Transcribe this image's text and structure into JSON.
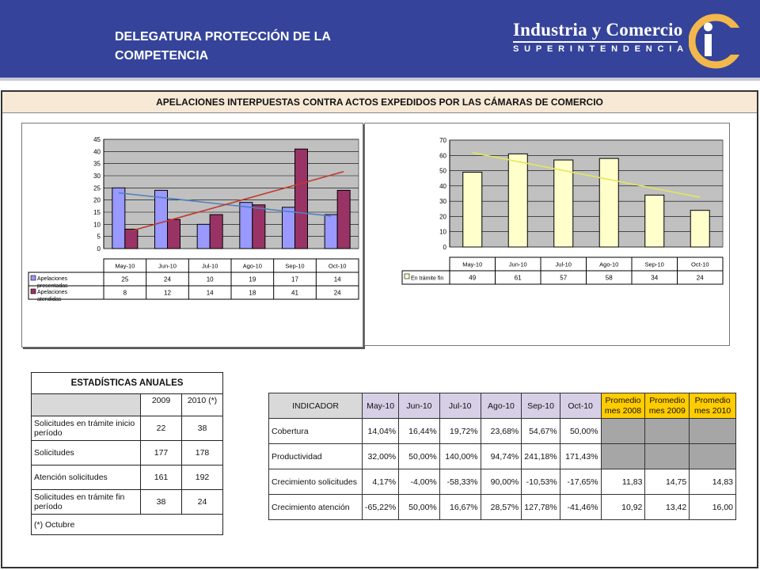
{
  "header": {
    "title": "DELEGATURA PROTECCIÓN DE LA COMPETENCIA",
    "brand_name": "Industria y Comercio",
    "brand_sub": "SUPERINTENDENCIA"
  },
  "banner": {
    "title": "APELACIONES INTERPUESTAS CONTRA  ACTOS EXPEDIDOS POR LAS CÁMARAS DE COMERCIO"
  },
  "chart_data": [
    {
      "type": "bar",
      "categories": [
        "May-10",
        "Jun-10",
        "Jul-10",
        "Ago-10",
        "Sep-10",
        "Oct-10"
      ],
      "series": [
        {
          "name": "Apelaciones presentadas",
          "values": [
            25,
            24,
            10,
            19,
            17,
            14
          ],
          "color": "#9999ff"
        },
        {
          "name": "Apelaciones atendidas",
          "values": [
            8,
            12,
            14,
            18,
            41,
            24
          ],
          "color": "#993366"
        }
      ],
      "trendlines": [
        {
          "series": "Apelaciones presentadas",
          "color": "#4f81bd"
        },
        {
          "series": "Apelaciones atendidas",
          "color": "#c0392b"
        }
      ],
      "ylim": [
        0,
        45
      ],
      "yticks": [
        0,
        5,
        10,
        15,
        20,
        25,
        30,
        35,
        40,
        45
      ],
      "grid": true,
      "plot_bg": "#c0c0c0",
      "legend": "data-table"
    },
    {
      "type": "bar",
      "categories": [
        "May-10",
        "Jun-10",
        "Jul-10",
        "Ago-10",
        "Sep-10",
        "Oct-10"
      ],
      "series": [
        {
          "name": "En trámite fin",
          "values": [
            49,
            61,
            57,
            58,
            34,
            24
          ],
          "color": "#ffffcc"
        }
      ],
      "trendlines": [
        {
          "series": "En trámite fin",
          "color": "#e6e65c"
        }
      ],
      "ylim": [
        0,
        70
      ],
      "yticks": [
        0,
        10,
        20,
        30,
        40,
        50,
        60,
        70
      ],
      "grid": true,
      "plot_bg": "#c0c0c0",
      "legend": "data-table"
    }
  ],
  "stats": {
    "title": "ESTADÍSTICAS ANUALES",
    "col_2009": "2009",
    "col_2010": "2010 (*)",
    "rows": [
      {
        "label": "Solicitudes en trámite inicio período",
        "v2009": "22",
        "v2010": "38"
      },
      {
        "label": "Solicitudes",
        "v2009": "177",
        "v2010": "178"
      },
      {
        "label": "Atención solicitudes",
        "v2009": "161",
        "v2010": "192"
      },
      {
        "label": "Solicitudes en trámite fin período",
        "v2009": "38",
        "v2010": "24"
      }
    ],
    "footnote": "(*) Octubre"
  },
  "indicators": {
    "header": [
      "INDICADOR",
      "May-10",
      "Jun-10",
      "Jul-10",
      "Ago-10",
      "Sep-10",
      "Oct-10",
      "Promedio mes 2008",
      "Promedio mes 2009",
      "Promedio mes 2010"
    ],
    "rows": [
      {
        "label": "Cobertura",
        "values": [
          "14,04%",
          "16,44%",
          "19,72%",
          "23,68%",
          "54,67%",
          "50,00%"
        ],
        "avgs": [
          "",
          "",
          ""
        ]
      },
      {
        "label": "Productividad",
        "values": [
          "32,00%",
          "50,00%",
          "140,00%",
          "94,74%",
          "241,18%",
          "171,43%"
        ],
        "avgs": [
          "",
          "",
          ""
        ]
      },
      {
        "label": "Crecimiento solicitudes",
        "values": [
          "4,17%",
          "-4,00%",
          "-58,33%",
          "90,00%",
          "-10,53%",
          "-17,65%"
        ],
        "avgs": [
          "11,83",
          "14,75",
          "14,83"
        ]
      },
      {
        "label": "Crecimiento atención",
        "values": [
          "-65,22%",
          "50,00%",
          "16,67%",
          "28,57%",
          "127,78%",
          "-41,46%"
        ],
        "avgs": [
          "10,92",
          "13,42",
          "16,00"
        ]
      }
    ]
  }
}
